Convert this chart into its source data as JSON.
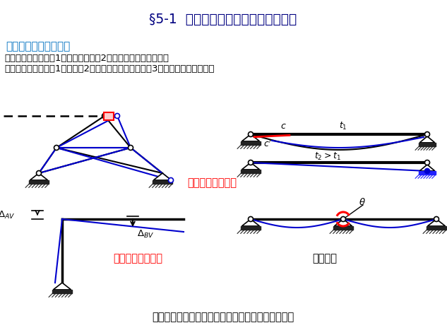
{
  "title": "§5-1  应用虚力原理求刚体体系的位移",
  "section_title": "一、结构位移计算概述",
  "line1": "计算位移的目的：（1）刚度验算，（2）超静定结构分析的基础",
  "line2": "产生位移的原因：（1）荷载（2）温度变化、材料膨缩（3）支座沉降、制造误差",
  "abs_label": "以上都是绝对位移",
  "rel_label": "以上都是相对位移",
  "gen_label": "广义位移",
  "bottom_label": "位移计算虽是几何问题，但是用虚力原理解决最方便",
  "bg_color": "#ffffff",
  "title_color": "#000080",
  "section_color": "#0070c0",
  "text_color": "#000000",
  "red_color": "#ff0000",
  "blue_color": "#0000cd",
  "black_color": "#000000"
}
